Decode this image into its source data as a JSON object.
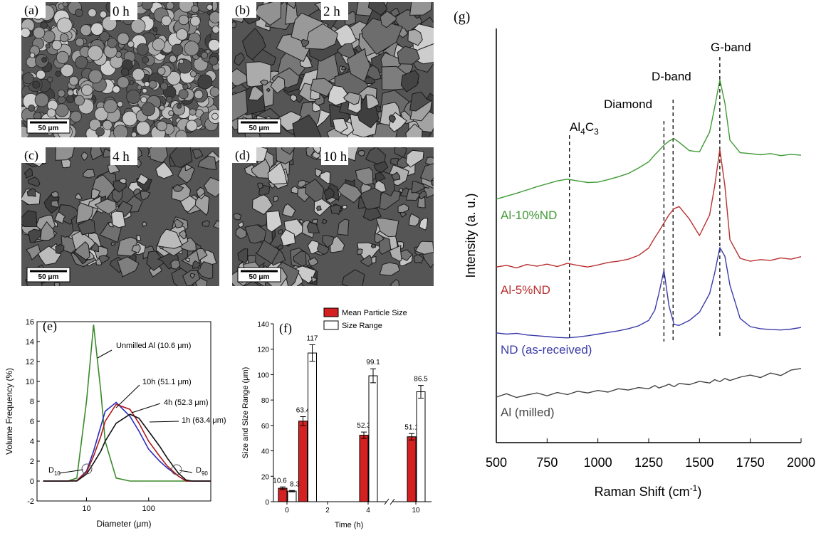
{
  "panels": [
    {
      "label": "(a)",
      "time": "0 h",
      "scale_bar": "50 μm"
    },
    {
      "label": "(b)",
      "time": "2 h",
      "scale_bar": "50 μm"
    },
    {
      "label": "(c)",
      "time": "4 h",
      "scale_bar": "50 μm"
    },
    {
      "label": "(d)",
      "time": "10 h",
      "scale_bar": "50 μm"
    }
  ],
  "chart_data": [
    {
      "type": "line",
      "panel": "(e)",
      "x_label": "Diameter (μm)",
      "y_label": "Volume Frequency (%)",
      "log_x": true,
      "x": [
        2,
        3,
        5,
        7,
        10,
        13,
        17,
        20,
        30,
        50,
        70,
        100,
        150,
        200,
        300,
        400,
        500,
        1000
      ],
      "series": [
        {
          "name": "Unmilled Al",
          "color": "#3a8a2a",
          "values": [
            0,
            0,
            0,
            0.3,
            8,
            15.7,
            9,
            4,
            0.3,
            0,
            0,
            0,
            0,
            0,
            0,
            0,
            0,
            0
          ]
        },
        {
          "name": "10h",
          "color": "#2b2bbf",
          "values": [
            0,
            0,
            0,
            0.05,
            1,
            3,
            5.5,
            7,
            7.9,
            6.5,
            5,
            3.2,
            2,
            1.3,
            0.5,
            0,
            0,
            0
          ]
        },
        {
          "name": "4h",
          "color": "#b01818",
          "values": [
            0,
            0,
            0,
            0.05,
            0.9,
            2.5,
            4.5,
            6,
            7.7,
            7.2,
            5.8,
            4,
            2.5,
            1.5,
            0.5,
            0,
            0,
            0
          ]
        },
        {
          "name": "1h",
          "color": "#111111",
          "values": [
            0,
            0,
            0,
            0,
            0.7,
            1.8,
            3,
            4,
            5.8,
            6.7,
            6.3,
            5,
            3.5,
            2.3,
            0.8,
            0.1,
            0,
            0
          ]
        }
      ],
      "annotations": [
        {
          "text": "Unmilled Al (10.6 μm)"
        },
        {
          "text": "10h (51.1 μm)"
        },
        {
          "text": "4h (52.3 μm)"
        },
        {
          "text": "1h (63.4 μm)"
        },
        {
          "text": "D",
          "sub": "10"
        },
        {
          "text": "D",
          "sub": "90"
        }
      ],
      "xlim": [
        1.6,
        1000
      ],
      "xticks": [
        10,
        100
      ],
      "ylim": [
        -2,
        16
      ],
      "yticks": [
        -2,
        0,
        2,
        4,
        6,
        8,
        10,
        12,
        14,
        16
      ]
    },
    {
      "type": "bar",
      "panel": "(f)",
      "x_label": "Time (h)",
      "y_label": "Size and Size Range (μm)",
      "x": [
        0,
        1,
        4,
        10
      ],
      "xticks": [
        0,
        2,
        4,
        10
      ],
      "axis_break": true,
      "series": [
        {
          "name": "Mean Particle Size",
          "color": "#d42020",
          "values": [
            10.6,
            63.4,
            52.3,
            51.1
          ],
          "errors": [
            1,
            3.5,
            2.5,
            2.5
          ]
        },
        {
          "name": "Size Range",
          "color": "#ffffff",
          "values": [
            8.3,
            117,
            99.1,
            86.5
          ],
          "errors": [
            0.5,
            6.5,
            5.5,
            5
          ]
        }
      ],
      "ylim": [
        0,
        140
      ],
      "yticks": [
        0,
        20,
        40,
        60,
        80,
        100,
        120,
        140
      ]
    },
    {
      "type": "line",
      "panel": "(g)",
      "x_label": {
        "text": "Raman Shift (cm",
        "sup": "-1",
        "tail": ")"
      },
      "y_label": "Intensity (a. u.)",
      "x": [
        500,
        550,
        600,
        650,
        700,
        750,
        800,
        850,
        900,
        950,
        1000,
        1050,
        1100,
        1150,
        1200,
        1250,
        1280,
        1300,
        1325,
        1350,
        1375,
        1400,
        1450,
        1500,
        1550,
        1575,
        1600,
        1625,
        1650,
        1700,
        1750,
        1800,
        1850,
        1900,
        1950,
        2000
      ],
      "series": [
        {
          "name": "Al (milled)",
          "color": "#444444",
          "values": [
            11.0,
            11.8,
            10.9,
            11.5,
            12.0,
            11.3,
            12.1,
            11.6,
            12.4,
            12.0,
            12.6,
            12.2,
            13.0,
            12.7,
            13.3,
            13.0,
            13.8,
            13.2,
            13.6,
            14.1,
            13.5,
            14.3,
            14.0,
            14.8,
            14.4,
            15.2,
            14.7,
            15.5,
            15.0,
            15.8,
            16.3,
            15.7,
            16.8,
            16.2,
            17.5,
            17.9
          ]
        },
        {
          "name": "ND (as-received)",
          "color": "#3a3aa8",
          "values": [
            26.5,
            26.2,
            26.4,
            26.0,
            25.8,
            25.6,
            25.4,
            25.3,
            25.5,
            25.8,
            26.2,
            26.6,
            27.0,
            27.5,
            28.2,
            29.5,
            32,
            36,
            41.6,
            33,
            28.5,
            28.3,
            29.5,
            31.5,
            36,
            41,
            47.1,
            45,
            38,
            30,
            28,
            27.5,
            27.3,
            27.2,
            27.4,
            27.8
          ]
        },
        {
          "name": "Al-5%ND",
          "color": "#b83030",
          "values": [
            42.4,
            42.8,
            42.2,
            43.0,
            42.6,
            43.1,
            42.5,
            43.3,
            42.8,
            42.4,
            42.9,
            43.5,
            43.8,
            44.3,
            45.2,
            47,
            49.5,
            51,
            53,
            55,
            56.5,
            57,
            54,
            50,
            55,
            62,
            70.8,
            62,
            49,
            44.5,
            43.8,
            44.2,
            44.0,
            44.6,
            44.3,
            44.9
          ]
        },
        {
          "name": "Al-10%ND",
          "color": "#3f9a35",
          "values": [
            58.8,
            59.5,
            60.2,
            61,
            61.8,
            62.5,
            63.2,
            63.6,
            63.2,
            62.8,
            62.9,
            63.5,
            64.2,
            65,
            66.3,
            67.8,
            69.5,
            70.5,
            71.8,
            72.8,
            73.4,
            72.5,
            70.5,
            70.2,
            75,
            81,
            87.6,
            82,
            73,
            70,
            69.8,
            69.5,
            69.8,
            69.3,
            69.6,
            69.4
          ]
        }
      ],
      "bands": [
        {
          "label": [
            "Al",
            "4",
            "C",
            "3"
          ],
          "x": 860
        },
        {
          "label": [
            "Diamond"
          ],
          "x": 1325
        },
        {
          "label": [
            "D-band"
          ],
          "x": 1370
        },
        {
          "label": [
            "G-band"
          ],
          "x": 1600
        }
      ],
      "xlim": [
        500,
        2000
      ],
      "xticks": [
        500,
        750,
        1000,
        1250,
        1500,
        1750,
        2000
      ],
      "ylim": [
        0,
        100
      ]
    }
  ]
}
